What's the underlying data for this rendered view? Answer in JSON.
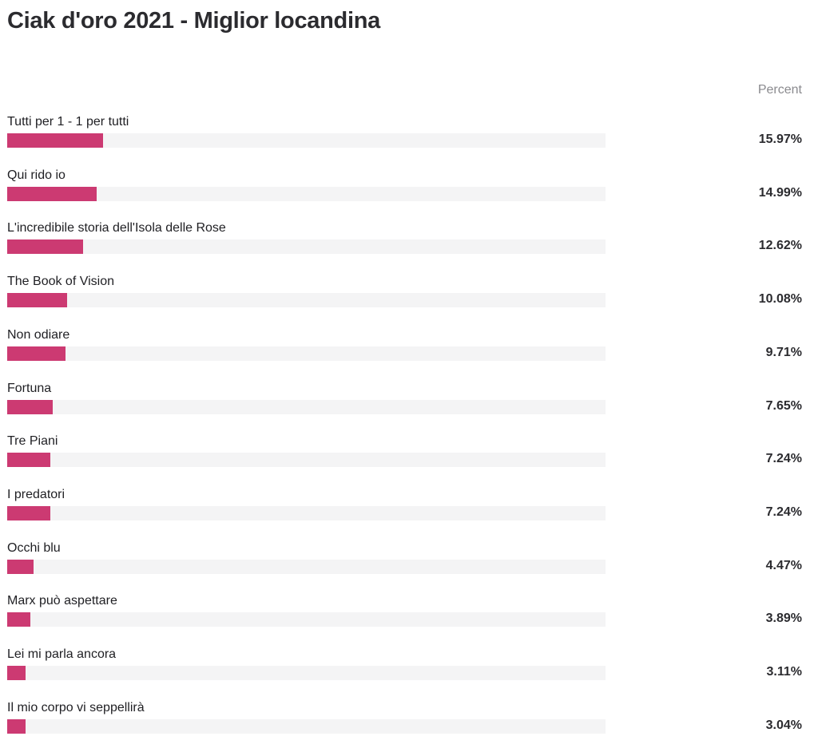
{
  "chart_data": {
    "type": "bar",
    "orientation": "horizontal",
    "title": "Ciak d'oro 2021 - Miglior locandina",
    "value_header": "Percent",
    "xlim": [
      0,
      100
    ],
    "grid": false,
    "bar_color": "#cc3a72",
    "track_color": "#f4f4f5",
    "categories": [
      "Tutti per 1 - 1 per tutti",
      "Qui rido io",
      "L'incredibile storia dell'Isola delle Rose",
      "The Book of Vision",
      "Non odiare",
      "Fortuna",
      "Tre Piani",
      "I predatori",
      "Occhi blu",
      "Marx può aspettare",
      "Lei mi parla ancora",
      "Il mio corpo vi seppellirà"
    ],
    "values": [
      15.97,
      14.99,
      12.62,
      10.08,
      9.71,
      7.65,
      7.24,
      7.24,
      4.47,
      3.89,
      3.11,
      3.04
    ],
    "value_labels": [
      "15.97%",
      "14.99%",
      "12.62%",
      "10.08%",
      "9.71%",
      "7.65%",
      "7.24%",
      "7.24%",
      "4.47%",
      "3.89%",
      "3.11%",
      "3.04%"
    ]
  }
}
